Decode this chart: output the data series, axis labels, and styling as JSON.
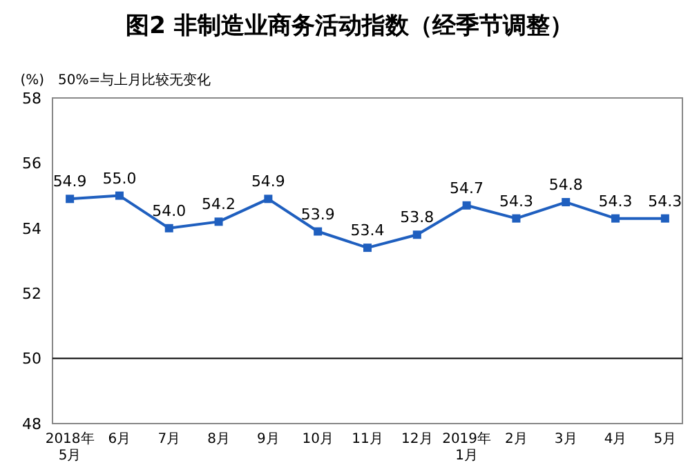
{
  "chart_data": {
    "type": "line",
    "title": "图2  非制造业商务活动指数（经季节调整）",
    "ylabel": "(%)",
    "annotations": [
      "50%=与上月比较无变化"
    ],
    "categories": [
      "2018年\n5月",
      "6月",
      "7月",
      "8月",
      "9月",
      "10月",
      "11月",
      "12月",
      "2019年\n1月",
      "2月",
      "3月",
      "4月",
      "5月"
    ],
    "series": [
      {
        "color": "#1f5fbf",
        "values": [
          54.9,
          55.0,
          54.0,
          54.2,
          54.9,
          53.9,
          53.4,
          53.8,
          54.7,
          54.3,
          54.8,
          54.3,
          54.3
        ],
        "value_labels": [
          "54.9",
          "55.0",
          "54.0",
          "54.2",
          "54.9",
          "53.9",
          "53.4",
          "53.8",
          "54.7",
          "54.3",
          "54.8",
          "54.3",
          "54.3"
        ]
      }
    ],
    "ylim": [
      48,
      58
    ],
    "yticks": [
      48,
      50,
      52,
      54,
      56,
      58
    ],
    "ref_lines": [
      {
        "axis": "y",
        "value": 50,
        "color": "#000000"
      }
    ],
    "marker": "square"
  }
}
